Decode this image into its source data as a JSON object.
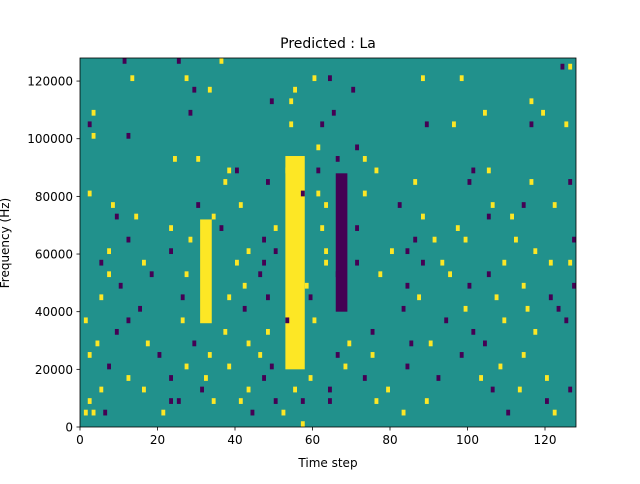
{
  "chart_data": {
    "type": "heatmap",
    "title": "Predicted : La",
    "xlabel": "Time step",
    "ylabel": "Frequency (Hz)",
    "xlim": [
      0,
      128
    ],
    "ylim": [
      0,
      128000
    ],
    "xticks": [
      0,
      20,
      40,
      60,
      80,
      100,
      120
    ],
    "yticks": [
      0,
      20000,
      40000,
      60000,
      80000,
      100000,
      120000
    ],
    "n_time_steps": 128,
    "n_freq_bins": 64,
    "grid": false,
    "legend": "none",
    "colors": {
      "background": "#21918c",
      "low": "#440154",
      "high": "#fde725"
    },
    "cell_levels": [
      "low",
      "background",
      "high"
    ],
    "dense_regions": [
      {
        "level": "high",
        "t": [
          53,
          57
        ],
        "f": [
          20000,
          92000
        ]
      },
      {
        "level": "high",
        "t": [
          31,
          33
        ],
        "f": [
          36000,
          70000
        ]
      },
      {
        "level": "low",
        "t": [
          66,
          68
        ],
        "f": [
          40000,
          86000
        ]
      }
    ],
    "marks": [
      {
        "t": 11,
        "f": 126000,
        "level": "low"
      },
      {
        "t": 25,
        "f": 126000,
        "level": "low"
      },
      {
        "t": 36,
        "f": 126000,
        "level": "high"
      },
      {
        "t": 124,
        "f": 124000,
        "level": "low"
      },
      {
        "t": 126,
        "f": 124000,
        "level": "high"
      },
      {
        "t": 13,
        "f": 120000,
        "level": "high"
      },
      {
        "t": 27,
        "f": 120000,
        "level": "high"
      },
      {
        "t": 60,
        "f": 120000,
        "level": "high"
      },
      {
        "t": 64,
        "f": 120000,
        "level": "low"
      },
      {
        "t": 88,
        "f": 120000,
        "level": "high"
      },
      {
        "t": 98,
        "f": 120000,
        "level": "high"
      },
      {
        "t": 29,
        "f": 116000,
        "level": "low"
      },
      {
        "t": 33,
        "f": 116000,
        "level": "high"
      },
      {
        "t": 55,
        "f": 116000,
        "level": "high"
      },
      {
        "t": 70,
        "f": 116000,
        "level": "low"
      },
      {
        "t": 49,
        "f": 112000,
        "level": "low"
      },
      {
        "t": 54,
        "f": 112000,
        "level": "high"
      },
      {
        "t": 116,
        "f": 112000,
        "level": "high"
      },
      {
        "t": 3,
        "f": 108000,
        "level": "high"
      },
      {
        "t": 28,
        "f": 108000,
        "level": "low"
      },
      {
        "t": 65,
        "f": 108000,
        "level": "low"
      },
      {
        "t": 104,
        "f": 108000,
        "level": "high"
      },
      {
        "t": 119,
        "f": 108000,
        "level": "high"
      },
      {
        "t": 2,
        "f": 104000,
        "level": "low"
      },
      {
        "t": 54,
        "f": 104000,
        "level": "high"
      },
      {
        "t": 62,
        "f": 104000,
        "level": "low"
      },
      {
        "t": 89,
        "f": 104000,
        "level": "low"
      },
      {
        "t": 96,
        "f": 104000,
        "level": "high"
      },
      {
        "t": 116,
        "f": 104000,
        "level": "low"
      },
      {
        "t": 125,
        "f": 104000,
        "level": "high"
      },
      {
        "t": 3,
        "f": 100000,
        "level": "high"
      },
      {
        "t": 12,
        "f": 100000,
        "level": "low"
      },
      {
        "t": 61,
        "f": 96000,
        "level": "high"
      },
      {
        "t": 71,
        "f": 96000,
        "level": "low"
      },
      {
        "t": 24,
        "f": 92000,
        "level": "high"
      },
      {
        "t": 30,
        "f": 92000,
        "level": "high"
      },
      {
        "t": 66,
        "f": 92000,
        "level": "low"
      },
      {
        "t": 73,
        "f": 92000,
        "level": "high"
      },
      {
        "t": 38,
        "f": 88000,
        "level": "high"
      },
      {
        "t": 40,
        "f": 88000,
        "level": "low"
      },
      {
        "t": 53,
        "f": 88000,
        "level": "high"
      },
      {
        "t": 61,
        "f": 88000,
        "level": "low"
      },
      {
        "t": 76,
        "f": 88000,
        "level": "high"
      },
      {
        "t": 101,
        "f": 88000,
        "level": "low"
      },
      {
        "t": 105,
        "f": 88000,
        "level": "high"
      },
      {
        "t": 37,
        "f": 84000,
        "level": "high"
      },
      {
        "t": 48,
        "f": 84000,
        "level": "low"
      },
      {
        "t": 86,
        "f": 84000,
        "level": "high"
      },
      {
        "t": 100,
        "f": 84000,
        "level": "low"
      },
      {
        "t": 116,
        "f": 84000,
        "level": "high"
      },
      {
        "t": 126,
        "f": 84000,
        "level": "low"
      },
      {
        "t": 2,
        "f": 80000,
        "level": "high"
      },
      {
        "t": 57,
        "f": 80000,
        "level": "low"
      },
      {
        "t": 61,
        "f": 80000,
        "level": "high"
      },
      {
        "t": 73,
        "f": 80000,
        "level": "high"
      },
      {
        "t": 8,
        "f": 76000,
        "level": "high"
      },
      {
        "t": 30,
        "f": 76000,
        "level": "low"
      },
      {
        "t": 41,
        "f": 76000,
        "level": "high"
      },
      {
        "t": 63,
        "f": 76000,
        "level": "high"
      },
      {
        "t": 82,
        "f": 76000,
        "level": "low"
      },
      {
        "t": 106,
        "f": 76000,
        "level": "high"
      },
      {
        "t": 114,
        "f": 76000,
        "level": "low"
      },
      {
        "t": 122,
        "f": 76000,
        "level": "high"
      },
      {
        "t": 9,
        "f": 72000,
        "level": "low"
      },
      {
        "t": 14,
        "f": 72000,
        "level": "high"
      },
      {
        "t": 34,
        "f": 72000,
        "level": "high"
      },
      {
        "t": 88,
        "f": 72000,
        "level": "high"
      },
      {
        "t": 105,
        "f": 72000,
        "level": "low"
      },
      {
        "t": 111,
        "f": 72000,
        "level": "high"
      },
      {
        "t": 23,
        "f": 68000,
        "level": "high"
      },
      {
        "t": 36,
        "f": 68000,
        "level": "low"
      },
      {
        "t": 50,
        "f": 68000,
        "level": "high"
      },
      {
        "t": 62,
        "f": 68000,
        "level": "high"
      },
      {
        "t": 71,
        "f": 68000,
        "level": "low"
      },
      {
        "t": 97,
        "f": 68000,
        "level": "high"
      },
      {
        "t": 12,
        "f": 64000,
        "level": "low"
      },
      {
        "t": 28,
        "f": 64000,
        "level": "high"
      },
      {
        "t": 47,
        "f": 64000,
        "level": "low"
      },
      {
        "t": 86,
        "f": 64000,
        "level": "low"
      },
      {
        "t": 91,
        "f": 64000,
        "level": "high"
      },
      {
        "t": 99,
        "f": 64000,
        "level": "high"
      },
      {
        "t": 112,
        "f": 64000,
        "level": "high"
      },
      {
        "t": 127,
        "f": 64000,
        "level": "low"
      },
      {
        "t": 7,
        "f": 60000,
        "level": "high"
      },
      {
        "t": 23,
        "f": 60000,
        "level": "low"
      },
      {
        "t": 43,
        "f": 60000,
        "level": "high"
      },
      {
        "t": 50,
        "f": 60000,
        "level": "low"
      },
      {
        "t": 63,
        "f": 60000,
        "level": "high"
      },
      {
        "t": 80,
        "f": 60000,
        "level": "high"
      },
      {
        "t": 84,
        "f": 60000,
        "level": "low"
      },
      {
        "t": 117,
        "f": 60000,
        "level": "high"
      },
      {
        "t": 5,
        "f": 56000,
        "level": "low"
      },
      {
        "t": 16,
        "f": 56000,
        "level": "high"
      },
      {
        "t": 40,
        "f": 56000,
        "level": "high"
      },
      {
        "t": 47,
        "f": 56000,
        "level": "low"
      },
      {
        "t": 63,
        "f": 56000,
        "level": "high"
      },
      {
        "t": 71,
        "f": 56000,
        "level": "low"
      },
      {
        "t": 88,
        "f": 56000,
        "level": "low"
      },
      {
        "t": 93,
        "f": 56000,
        "level": "high"
      },
      {
        "t": 109,
        "f": 56000,
        "level": "high"
      },
      {
        "t": 121,
        "f": 56000,
        "level": "high"
      },
      {
        "t": 126,
        "f": 56000,
        "level": "high"
      },
      {
        "t": 7,
        "f": 52000,
        "level": "high"
      },
      {
        "t": 18,
        "f": 52000,
        "level": "low"
      },
      {
        "t": 27,
        "f": 52000,
        "level": "high"
      },
      {
        "t": 46,
        "f": 52000,
        "level": "low"
      },
      {
        "t": 66,
        "f": 52000,
        "level": "low"
      },
      {
        "t": 77,
        "f": 52000,
        "level": "high"
      },
      {
        "t": 95,
        "f": 52000,
        "level": "high"
      },
      {
        "t": 105,
        "f": 52000,
        "level": "low"
      },
      {
        "t": 10,
        "f": 48000,
        "level": "low"
      },
      {
        "t": 42,
        "f": 48000,
        "level": "high"
      },
      {
        "t": 58,
        "f": 48000,
        "level": "high"
      },
      {
        "t": 84,
        "f": 48000,
        "level": "low"
      },
      {
        "t": 100,
        "f": 48000,
        "level": "low"
      },
      {
        "t": 114,
        "f": 48000,
        "level": "high"
      },
      {
        "t": 127,
        "f": 48000,
        "level": "low"
      },
      {
        "t": 5,
        "f": 44000,
        "level": "high"
      },
      {
        "t": 26,
        "f": 44000,
        "level": "low"
      },
      {
        "t": 38,
        "f": 44000,
        "level": "high"
      },
      {
        "t": 48,
        "f": 44000,
        "level": "low"
      },
      {
        "t": 59,
        "f": 44000,
        "level": "low"
      },
      {
        "t": 87,
        "f": 44000,
        "level": "high"
      },
      {
        "t": 107,
        "f": 44000,
        "level": "high"
      },
      {
        "t": 121,
        "f": 44000,
        "level": "low"
      },
      {
        "t": 15,
        "f": 40000,
        "level": "low"
      },
      {
        "t": 42,
        "f": 40000,
        "level": "low"
      },
      {
        "t": 83,
        "f": 40000,
        "level": "low"
      },
      {
        "t": 99,
        "f": 40000,
        "level": "high"
      },
      {
        "t": 115,
        "f": 40000,
        "level": "high"
      },
      {
        "t": 123,
        "f": 40000,
        "level": "low"
      },
      {
        "t": 1,
        "f": 36000,
        "level": "high"
      },
      {
        "t": 12,
        "f": 36000,
        "level": "low"
      },
      {
        "t": 26,
        "f": 36000,
        "level": "high"
      },
      {
        "t": 53,
        "f": 36000,
        "level": "low"
      },
      {
        "t": 60,
        "f": 36000,
        "level": "high"
      },
      {
        "t": 94,
        "f": 36000,
        "level": "low"
      },
      {
        "t": 109,
        "f": 36000,
        "level": "high"
      },
      {
        "t": 125,
        "f": 36000,
        "level": "low"
      },
      {
        "t": 9,
        "f": 32000,
        "level": "low"
      },
      {
        "t": 37,
        "f": 32000,
        "level": "high"
      },
      {
        "t": 48,
        "f": 32000,
        "level": "high"
      },
      {
        "t": 75,
        "f": 32000,
        "level": "low"
      },
      {
        "t": 101,
        "f": 32000,
        "level": "low"
      },
      {
        "t": 117,
        "f": 32000,
        "level": "high"
      },
      {
        "t": 4,
        "f": 28000,
        "level": "high"
      },
      {
        "t": 17,
        "f": 28000,
        "level": "high"
      },
      {
        "t": 29,
        "f": 28000,
        "level": "low"
      },
      {
        "t": 43,
        "f": 28000,
        "level": "high"
      },
      {
        "t": 69,
        "f": 28000,
        "level": "high"
      },
      {
        "t": 85,
        "f": 28000,
        "level": "low"
      },
      {
        "t": 90,
        "f": 28000,
        "level": "high"
      },
      {
        "t": 104,
        "f": 28000,
        "level": "low"
      },
      {
        "t": 2,
        "f": 24000,
        "level": "high"
      },
      {
        "t": 20,
        "f": 24000,
        "level": "low"
      },
      {
        "t": 33,
        "f": 24000,
        "level": "high"
      },
      {
        "t": 46,
        "f": 24000,
        "level": "high"
      },
      {
        "t": 66,
        "f": 24000,
        "level": "low"
      },
      {
        "t": 75,
        "f": 24000,
        "level": "high"
      },
      {
        "t": 98,
        "f": 24000,
        "level": "low"
      },
      {
        "t": 114,
        "f": 24000,
        "level": "high"
      },
      {
        "t": 7,
        "f": 20000,
        "level": "low"
      },
      {
        "t": 27,
        "f": 20000,
        "level": "high"
      },
      {
        "t": 38,
        "f": 20000,
        "level": "high"
      },
      {
        "t": 49,
        "f": 20000,
        "level": "low"
      },
      {
        "t": 68,
        "f": 20000,
        "level": "high"
      },
      {
        "t": 84,
        "f": 20000,
        "level": "low"
      },
      {
        "t": 108,
        "f": 20000,
        "level": "high"
      },
      {
        "t": 12,
        "f": 16000,
        "level": "high"
      },
      {
        "t": 23,
        "f": 16000,
        "level": "low"
      },
      {
        "t": 32,
        "f": 16000,
        "level": "high"
      },
      {
        "t": 47,
        "f": 16000,
        "level": "low"
      },
      {
        "t": 59,
        "f": 16000,
        "level": "high"
      },
      {
        "t": 73,
        "f": 16000,
        "level": "low"
      },
      {
        "t": 92,
        "f": 16000,
        "level": "low"
      },
      {
        "t": 103,
        "f": 16000,
        "level": "high"
      },
      {
        "t": 120,
        "f": 16000,
        "level": "high"
      },
      {
        "t": 5,
        "f": 12000,
        "level": "high"
      },
      {
        "t": 16,
        "f": 12000,
        "level": "high"
      },
      {
        "t": 31,
        "f": 12000,
        "level": "low"
      },
      {
        "t": 43,
        "f": 12000,
        "level": "high"
      },
      {
        "t": 55,
        "f": 12000,
        "level": "high"
      },
      {
        "t": 64,
        "f": 12000,
        "level": "low"
      },
      {
        "t": 79,
        "f": 12000,
        "level": "high"
      },
      {
        "t": 106,
        "f": 12000,
        "level": "low"
      },
      {
        "t": 113,
        "f": 12000,
        "level": "high"
      },
      {
        "t": 126,
        "f": 12000,
        "level": "low"
      },
      {
        "t": 2,
        "f": 8000,
        "level": "high"
      },
      {
        "t": 23,
        "f": 8000,
        "level": "low"
      },
      {
        "t": 25,
        "f": 8000,
        "level": "low"
      },
      {
        "t": 34,
        "f": 8000,
        "level": "high"
      },
      {
        "t": 41,
        "f": 8000,
        "level": "high"
      },
      {
        "t": 50,
        "f": 8000,
        "level": "low"
      },
      {
        "t": 57,
        "f": 8000,
        "level": "low"
      },
      {
        "t": 64,
        "f": 8000,
        "level": "low"
      },
      {
        "t": 76,
        "f": 8000,
        "level": "high"
      },
      {
        "t": 89,
        "f": 8000,
        "level": "high"
      },
      {
        "t": 120,
        "f": 8000,
        "level": "low"
      },
      {
        "t": 1,
        "f": 4000,
        "level": "high"
      },
      {
        "t": 3,
        "f": 4000,
        "level": "high"
      },
      {
        "t": 6,
        "f": 4000,
        "level": "low"
      },
      {
        "t": 21,
        "f": 4000,
        "level": "high"
      },
      {
        "t": 44,
        "f": 4000,
        "level": "low"
      },
      {
        "t": 52,
        "f": 4000,
        "level": "high"
      },
      {
        "t": 83,
        "f": 4000,
        "level": "high"
      },
      {
        "t": 110,
        "f": 4000,
        "level": "low"
      },
      {
        "t": 122,
        "f": 4000,
        "level": "high"
      },
      {
        "t": 57,
        "f": 0,
        "level": "high"
      }
    ]
  }
}
